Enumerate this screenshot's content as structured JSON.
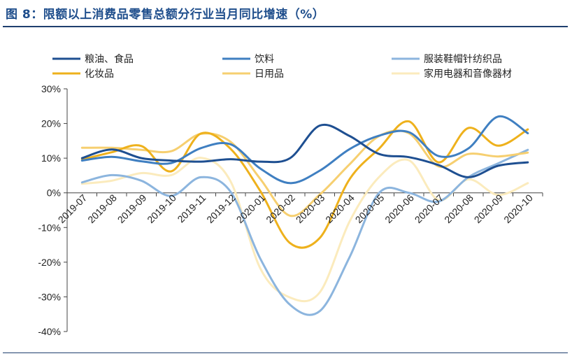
{
  "figure": {
    "title": "图 8：限额以上消费品零售总额分行业当月同比增速（%）"
  },
  "chart_data": {
    "type": "line",
    "smooth": true,
    "categories": [
      "2019-07",
      "2019-08",
      "2019-09",
      "2019-10",
      "2019-11",
      "2019-12",
      "2020-01",
      "2020-02",
      "2020-03",
      "2020-04",
      "2020-05",
      "2020-06",
      "2020-07",
      "2020-08",
      "2020-09",
      "2020-10"
    ],
    "ylim": [
      -0.4,
      0.3
    ],
    "yticks": [
      -0.4,
      -0.3,
      -0.2,
      -0.1,
      0,
      0.1,
      0.2,
      0.3
    ],
    "ytick_labels": [
      "-40%",
      "-30%",
      "-20%",
      "-10%",
      "0%",
      "10%",
      "20%",
      "30%"
    ],
    "grid": false,
    "legend_position": "top",
    "series": [
      {
        "name": "粮油、食品",
        "color": "#1e4f91",
        "values": [
          0.1,
          0.125,
          0.1,
          0.093,
          0.09,
          0.097,
          0.09,
          0.1,
          0.194,
          0.164,
          0.112,
          0.103,
          0.08,
          0.045,
          0.078,
          0.088
        ]
      },
      {
        "name": "饮料",
        "color": "#3f7fc1",
        "values": [
          0.093,
          0.104,
          0.091,
          0.086,
          0.129,
          0.14,
          0.07,
          0.028,
          0.064,
          0.126,
          0.165,
          0.175,
          0.106,
          0.128,
          0.22,
          0.172
        ]
      },
      {
        "name": "服装鞋帽针纺织品",
        "color": "#8cb5de",
        "values": [
          0.03,
          0.051,
          0.035,
          -0.009,
          0.045,
          0.003,
          -0.19,
          -0.323,
          -0.341,
          -0.186,
          0.0,
          0.0,
          -0.025,
          0.045,
          0.085,
          0.124
        ]
      },
      {
        "name": "化妆品",
        "color": "#eeb11c",
        "values": [
          0.096,
          0.117,
          0.135,
          0.062,
          0.171,
          0.127,
          0.005,
          -0.145,
          -0.13,
          0.039,
          0.128,
          0.206,
          0.088,
          0.187,
          0.136,
          0.183
        ]
      },
      {
        "name": "日用品",
        "color": "#f6cf70",
        "values": [
          0.13,
          0.13,
          0.124,
          0.12,
          0.17,
          0.147,
          0.04,
          -0.066,
          -0.005,
          0.082,
          0.164,
          0.172,
          0.076,
          0.112,
          0.105,
          0.116
        ]
      },
      {
        "name": "家用电器和音像器材",
        "color": "#fbebbd",
        "values": [
          0.026,
          0.035,
          0.057,
          0.051,
          0.101,
          0.033,
          -0.218,
          -0.302,
          -0.287,
          -0.083,
          0.046,
          0.094,
          -0.021,
          0.039,
          -0.006,
          0.028
        ]
      }
    ]
  }
}
